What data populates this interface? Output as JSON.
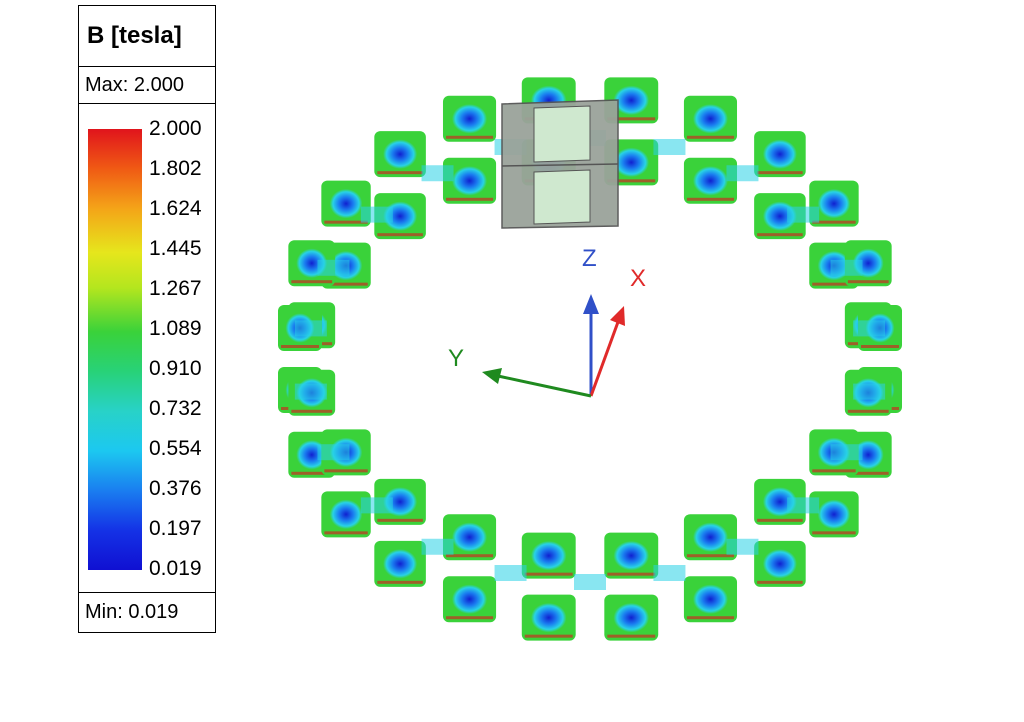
{
  "legend": {
    "title": "B [tesla]",
    "max_label": "Max: 2.000",
    "min_label": "Min: 0.019",
    "ticks": [
      "2.000",
      "1.802",
      "1.624",
      "1.445",
      "1.267",
      "1.089",
      "0.910",
      "0.732",
      "0.554",
      "0.376",
      "0.197",
      "0.019"
    ]
  },
  "triad": {
    "x_label": "X",
    "y_label": "Y",
    "z_label": "Z",
    "x_color": "#e02a2a",
    "y_color": "#1f8a1f",
    "z_color": "#3050c8"
  },
  "model": {
    "field_colors": {
      "high": "#e0141c",
      "mid": "#3ad23a",
      "low": "#1432e6",
      "cyan": "#28d2e6"
    },
    "selected_segment_color": "#9aa39a"
  }
}
